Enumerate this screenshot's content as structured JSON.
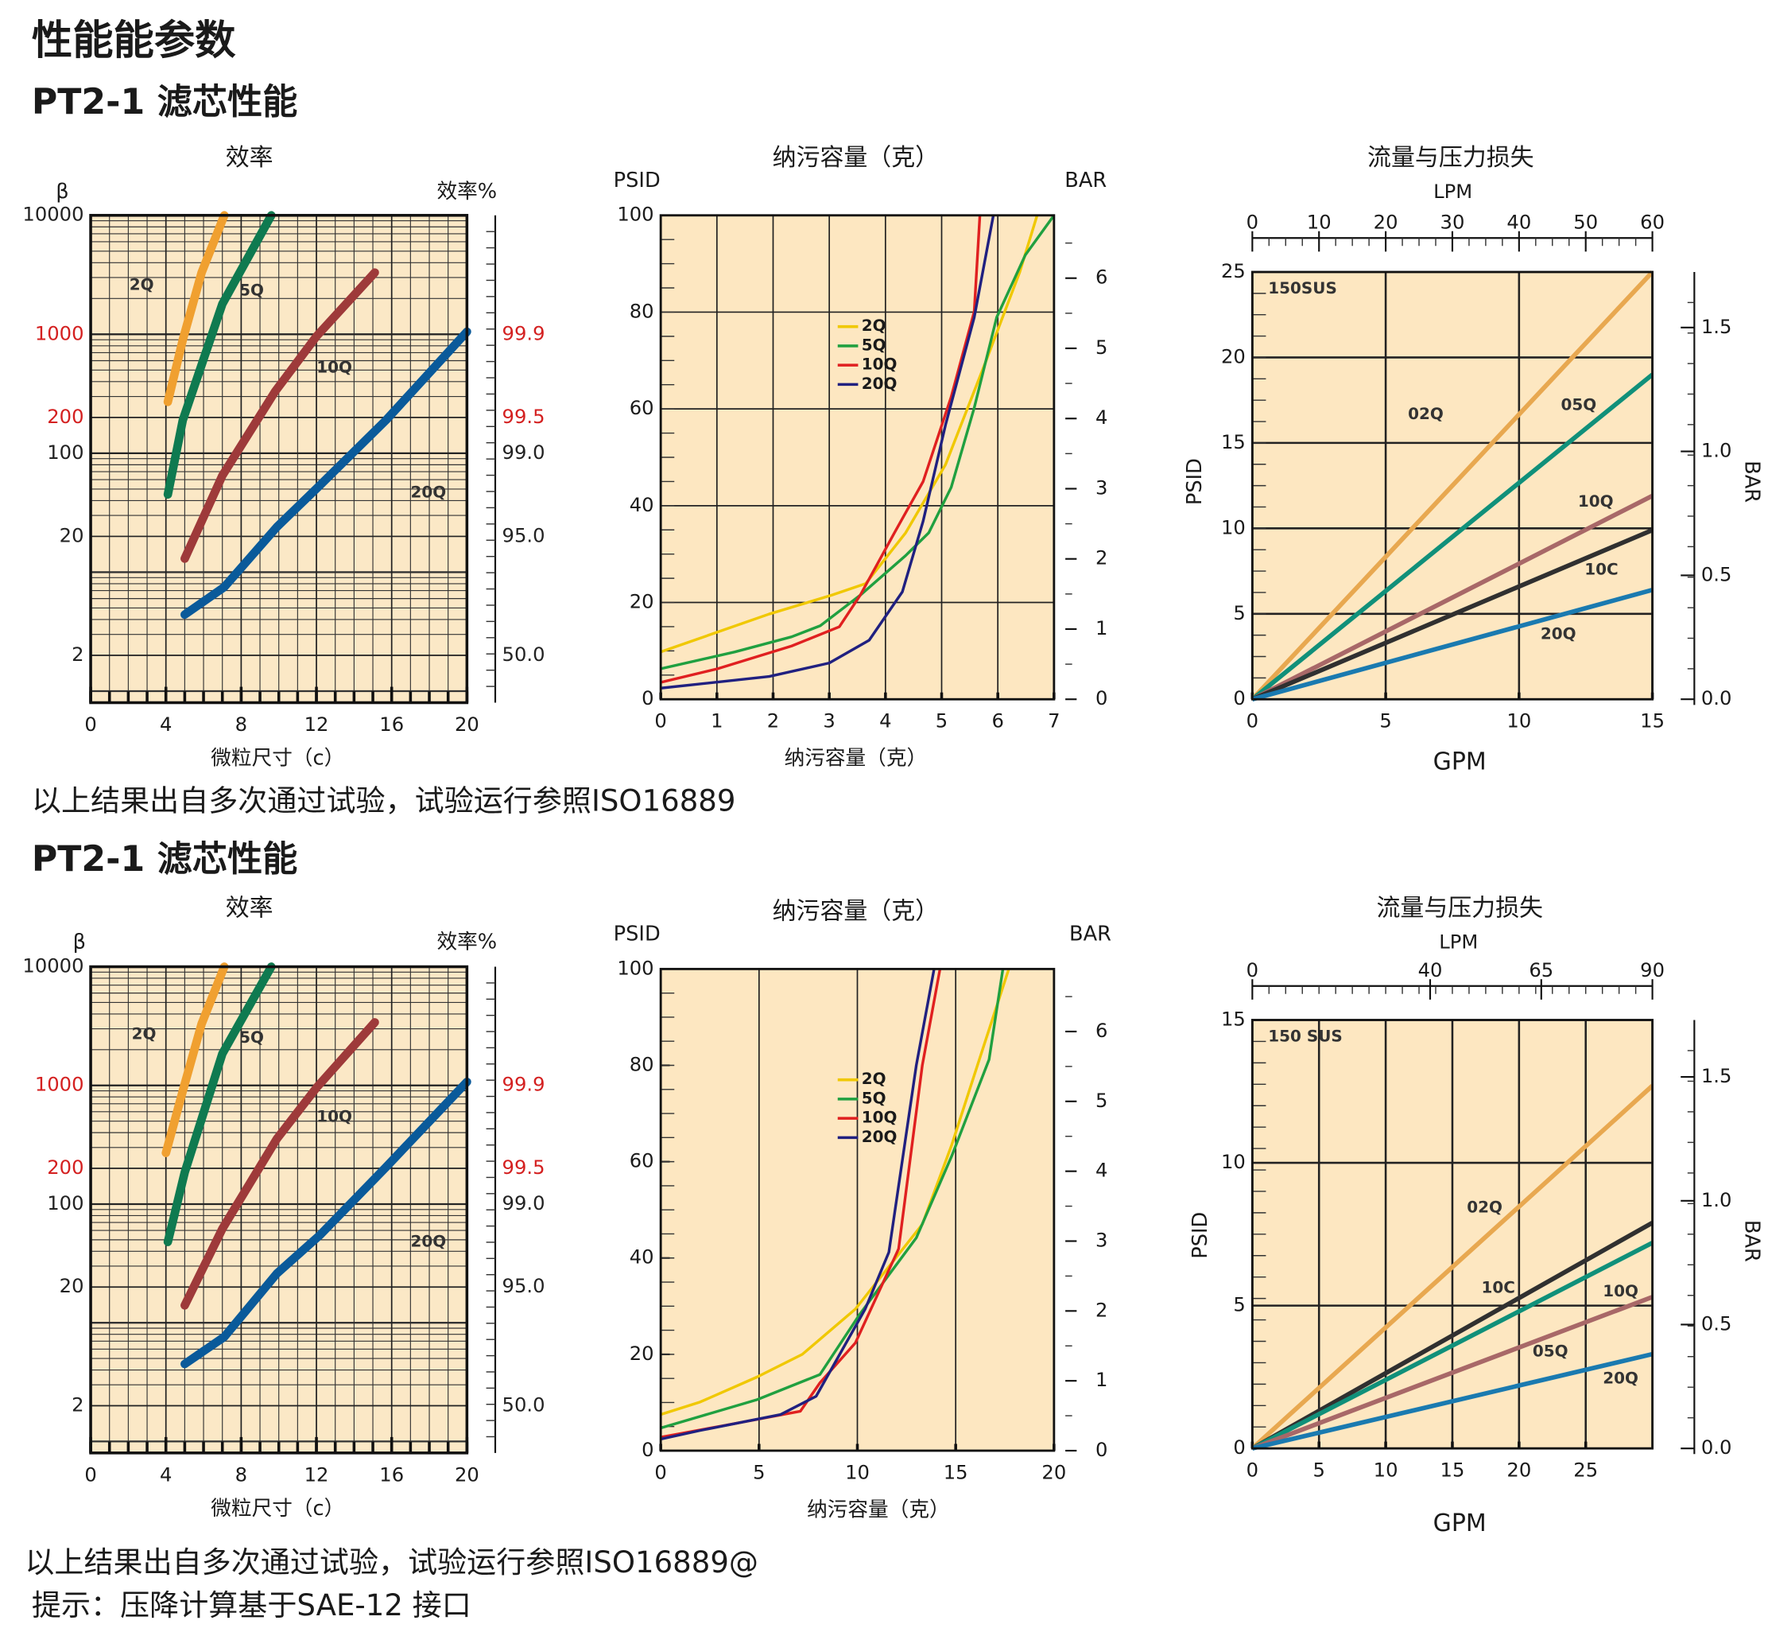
{
  "header": {
    "title": "性能能参数"
  },
  "sections": [
    {
      "heading": "PT2-1 滤芯性能",
      "note": "以上结果出自多次通过试验，试验运行参照ISO16889"
    },
    {
      "heading": "PT2-1 滤芯性能",
      "note": "以上结果出自多次通过试验，试验运行参照ISO16889@"
    }
  ],
  "footnote": "提示：压降计算基于SAE-12 接口",
  "chart_data": [
    {
      "type": "line",
      "title": "效率",
      "ylabel": "β",
      "y2label": "效率%",
      "xlabel": "微粒尺寸（c）",
      "log_y": true,
      "xlim": [
        0,
        20
      ],
      "xticks": [
        0,
        4,
        8,
        12,
        16,
        20
      ],
      "ylim": [
        0.8,
        10000
      ],
      "yticks": [
        2,
        20,
        100,
        200,
        1000,
        10000
      ],
      "ytick_colors": [
        "#222222",
        "#222222",
        "#222222",
        "#d42020",
        "#d42020",
        "#222222"
      ],
      "y2scale": "efficiency",
      "y2ticks": [
        {
          "value": 50,
          "label": "50.0"
        },
        {
          "value": 95,
          "label": "95.0"
        },
        {
          "value": 99,
          "label": "99.0"
        },
        99.5,
        99.9
      ],
      "y2tick_colors": [
        "#222222",
        "#222222",
        "#222222",
        "#d42020",
        "#d42020"
      ],
      "grid": true,
      "legend": "inline",
      "background": "#fbe8c6",
      "series": [
        {
          "name": "2Q",
          "color": "#f0a030",
          "x": [
            4.1,
            4.9,
            5.9,
            7.1
          ],
          "values": [
            270,
            900,
            3300,
            10000
          ]
        },
        {
          "name": "5Q",
          "color": "#0f7a50",
          "x": [
            4.1,
            4.9,
            7.0,
            9.6
          ],
          "values": [
            45,
            190,
            1800,
            10000
          ]
        },
        {
          "name": "10Q",
          "color": "#9e3a3a",
          "x": [
            5.0,
            7.0,
            9.8,
            12.0,
            15.1
          ],
          "values": [
            13,
            65,
            330,
            960,
            3300
          ]
        },
        {
          "name": "20Q",
          "color": "#0a5a9a",
          "x": [
            5.0,
            7.1,
            9.9,
            12.2,
            15.7,
            20
          ],
          "values": [
            4.4,
            7.5,
            24,
            54,
            190,
            1050
          ]
        }
      ]
    },
    {
      "type": "line",
      "title": "纳污容量（克）",
      "ylabel": "PSID",
      "y2label": "BAR",
      "xlabel": "纳污容量（克）",
      "xlim": [
        0,
        7
      ],
      "xticks": [
        0,
        1,
        2,
        3,
        4,
        5,
        6,
        7
      ],
      "ylim": [
        0,
        100
      ],
      "yticks": [
        0,
        20,
        40,
        60,
        80,
        100
      ],
      "y2lim": [
        0,
        6.895
      ],
      "y2ticks": [
        0,
        1,
        2,
        3,
        4,
        5,
        6
      ],
      "grid": "both",
      "legend": "upper-center",
      "background": "#fde7c1",
      "series": [
        {
          "name": "2Q",
          "color": "#f0c800",
          "x": [
            0,
            1.93,
            3.04,
            3.65,
            4.36,
            5.07,
            5.78,
            6.39,
            6.7
          ],
          "values": [
            9.8,
            17.6,
            21.5,
            23.9,
            34.4,
            48.5,
            69.6,
            88.3,
            100
          ]
        },
        {
          "name": "5Q",
          "color": "#20a040",
          "x": [
            0,
            1.32,
            2.33,
            2.84,
            3.55,
            4.36,
            4.77,
            5.17,
            5.58,
            5.98,
            6.49,
            7
          ],
          "values": [
            6.3,
            9.8,
            12.9,
            15.2,
            21.5,
            29.7,
            34.4,
            43.8,
            60.2,
            78.9,
            91.8,
            100
          ]
        },
        {
          "name": "10Q",
          "color": "#e02020",
          "x": [
            0,
            1.01,
            2.33,
            3.18,
            3.55,
            4.16,
            4.67,
            5.17,
            5.58,
            5.68
          ],
          "values": [
            3.5,
            6.3,
            11.0,
            15.0,
            21.5,
            34.4,
            45.0,
            62.5,
            80.1,
            100
          ]
        },
        {
          "name": "20Q",
          "color": "#202080",
          "x": [
            0,
            1.93,
            3.0,
            3.71,
            4.3,
            4.67,
            5.07,
            5.58,
            5.92
          ],
          "values": [
            2.3,
            4.7,
            7.5,
            12.2,
            22.2,
            36.8,
            56.7,
            78.9,
            100
          ]
        }
      ]
    },
    {
      "type": "line",
      "title": "流量与压力损失",
      "x2label": "LPM",
      "ylabel": "PSID",
      "y2label": "BAR",
      "xlabel": "GPM",
      "annotation": "150SUS",
      "xlim": [
        0,
        15
      ],
      "xticks": [
        0,
        5,
        10,
        15
      ],
      "x2lim": [
        0,
        60
      ],
      "x2ticks": [
        0,
        10,
        20,
        30,
        40,
        50,
        60
      ],
      "ylim": [
        0,
        25
      ],
      "yticks": [
        0,
        5,
        10,
        15,
        20,
        25
      ],
      "y2lim": [
        0,
        1.724
      ],
      "y2ticks": [
        {
          "value": 0,
          "label": "0.0"
        },
        0.5,
        {
          "value": 1,
          "label": "1.0"
        },
        1.5
      ],
      "grid": "both",
      "legend": "inline",
      "background": "#fde7c1",
      "series": [
        {
          "name": "02Q",
          "color": "#e8a850",
          "x": [
            0,
            15
          ],
          "values": [
            0,
            25
          ]
        },
        {
          "name": "05Q",
          "color": "#10907a",
          "x": [
            0,
            15
          ],
          "values": [
            0,
            19.0
          ]
        },
        {
          "name": "10Q",
          "color": "#a86868",
          "x": [
            0,
            15
          ],
          "values": [
            0,
            11.9
          ]
        },
        {
          "name": "10C",
          "color": "#303030",
          "x": [
            0,
            15
          ],
          "values": [
            0,
            9.9
          ]
        },
        {
          "name": "20Q",
          "color": "#1a7ab0",
          "x": [
            0,
            15
          ],
          "values": [
            0,
            6.4
          ]
        }
      ]
    },
    {
      "type": "line",
      "title": "效率",
      "ylabel": "β",
      "y2label": "效率%",
      "xlabel": "微粒尺寸（c）",
      "log_y": true,
      "xlim": [
        0,
        20
      ],
      "xticks": [
        0,
        4,
        8,
        12,
        16,
        20
      ],
      "ylim": [
        0.8,
        10000
      ],
      "yticks": [
        2,
        20,
        100,
        200,
        1000,
        10000
      ],
      "ytick_colors": [
        "#222222",
        "#222222",
        "#222222",
        "#d42020",
        "#d42020",
        "#222222"
      ],
      "y2scale": "efficiency",
      "y2ticks": [
        {
          "value": 50,
          "label": "50.0"
        },
        {
          "value": 95,
          "label": "95.0"
        },
        {
          "value": 99,
          "label": "99.0"
        },
        99.5,
        99.9
      ],
      "y2tick_colors": [
        "#222222",
        "#222222",
        "#222222",
        "#d42020",
        "#d42020"
      ],
      "grid": true,
      "legend": "inline",
      "background": "#fbe8c6",
      "series": [
        {
          "name": "2Q",
          "color": "#f0a030",
          "x": [
            4.0,
            4.9,
            5.9,
            7.1
          ],
          "values": [
            270,
            900,
            3300,
            10000
          ]
        },
        {
          "name": "5Q",
          "color": "#0f7a50",
          "x": [
            4.1,
            5.0,
            7.0,
            9.6
          ],
          "values": [
            48,
            185,
            1850,
            10000
          ]
        },
        {
          "name": "10Q",
          "color": "#9e3a3a",
          "x": [
            5.0,
            7.0,
            9.9,
            12.0,
            15.1
          ],
          "values": [
            14,
            62,
            355,
            955,
            3400
          ]
        },
        {
          "name": "20Q",
          "color": "#0a5a9a",
          "x": [
            5.0,
            7.1,
            9.9,
            12.2,
            15.7,
            20
          ],
          "values": [
            4.5,
            7.6,
            26,
            55,
            205,
            1070
          ]
        }
      ]
    },
    {
      "type": "line",
      "title": "纳污容量（克）",
      "ylabel": "PSID",
      "y2label": "BAR",
      "xlabel": "纳污容量（克）",
      "xlim": [
        0,
        20
      ],
      "xticks": [
        0,
        5,
        10,
        15,
        20
      ],
      "ylim": [
        0,
        100
      ],
      "yticks": [
        0,
        20,
        40,
        60,
        80,
        100
      ],
      "y2lim": [
        0,
        6.895
      ],
      "y2ticks": [
        0,
        1,
        2,
        3,
        4,
        5,
        6
      ],
      "grid": "x",
      "legend": "upper-center",
      "background": "#fde7c1",
      "series": [
        {
          "name": "2Q",
          "color": "#f0c800",
          "x": [
            0,
            2.0,
            4.9,
            7.2,
            9.9,
            13.3,
            14.8,
            16.2,
            17.7
          ],
          "values": [
            7.5,
            10.1,
            15.3,
            20,
            29.4,
            47,
            63.5,
            81.2,
            100
          ]
        },
        {
          "name": "5Q",
          "color": "#20a040",
          "x": [
            0,
            4.9,
            8.1,
            10.1,
            13.0,
            14.8,
            16.7,
            17.4
          ],
          "values": [
            4.7,
            10.6,
            15.8,
            28.2,
            44.2,
            61.2,
            81.2,
            100
          ]
        },
        {
          "name": "10Q",
          "color": "#e02020",
          "x": [
            0,
            3.2,
            7.1,
            8.1,
            9.9,
            12.1,
            13.3,
            14.2
          ],
          "values": [
            2.8,
            5.2,
            8.2,
            14.1,
            22.4,
            41.9,
            80,
            100
          ]
        },
        {
          "name": "20Q",
          "color": "#202080",
          "x": [
            0,
            2.0,
            6.1,
            7.9,
            10.4,
            11.6,
            13.0,
            13.9
          ],
          "values": [
            2.4,
            4.2,
            7.5,
            11.3,
            29.4,
            41.2,
            80,
            100
          ]
        }
      ]
    },
    {
      "type": "line",
      "title": "流量与压力损失",
      "x2label": "LPM",
      "ylabel": "PSID",
      "y2label": "BAR",
      "xlabel": "GPM",
      "annotation": "150 SUS",
      "xlim": [
        0,
        30
      ],
      "xticks": [
        0,
        5,
        10,
        15,
        20,
        25
      ],
      "x2lim": [
        0,
        90
      ],
      "x2ticks": [
        0,
        40,
        65,
        90
      ],
      "ylim": [
        0,
        15
      ],
      "yticks": [
        0,
        5,
        10,
        15
      ],
      "y2lim": [
        0,
        1.73
      ],
      "y2ticks": [
        {
          "value": 0,
          "label": "0.0"
        },
        0.5,
        {
          "value": 1,
          "label": "1.0"
        },
        1.5
      ],
      "grid": "both",
      "legend": "inline",
      "background": "#fde7c1",
      "series": [
        {
          "name": "02Q",
          "color": "#e8a850",
          "x": [
            0,
            30
          ],
          "values": [
            0,
            12.7
          ]
        },
        {
          "name": "10C",
          "color": "#303030",
          "x": [
            0,
            30
          ],
          "values": [
            0,
            7.9
          ]
        },
        {
          "name": "10Q",
          "color": "#10907a",
          "x": [
            0,
            30
          ],
          "values": [
            0,
            7.2
          ]
        },
        {
          "name": "05Q",
          "color": "#a86868",
          "x": [
            0,
            30
          ],
          "values": [
            0,
            5.3
          ]
        },
        {
          "name": "20Q",
          "color": "#1a7ab0",
          "x": [
            0,
            30
          ],
          "values": [
            0,
            3.3
          ]
        }
      ]
    }
  ]
}
